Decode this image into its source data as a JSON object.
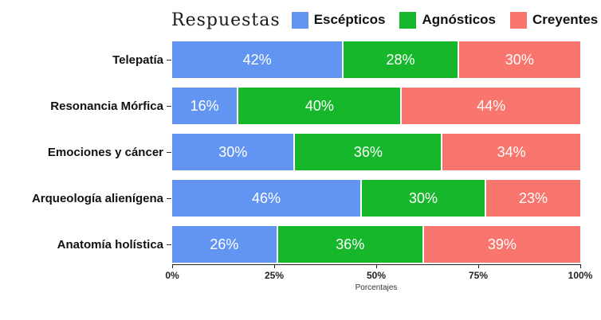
{
  "legend": {
    "title": "Respuestas",
    "items": [
      {
        "label": "Escépticos",
        "color": "#6295F2"
      },
      {
        "label": "Agnósticos",
        "color": "#17B72B"
      },
      {
        "label": "Creyentes",
        "color": "#F8766D"
      }
    ]
  },
  "chart_data": {
    "type": "bar",
    "orientation": "horizontal",
    "stacked": true,
    "title": "Respuestas",
    "xlabel": "Porcentajes",
    "ylabel": "",
    "xlim": [
      0,
      100
    ],
    "x_ticks": [
      "0%",
      "25%",
      "50%",
      "75%",
      "100%"
    ],
    "x_tick_values": [
      0,
      25,
      50,
      75,
      100
    ],
    "legend_position": "top",
    "value_suffix": "%",
    "categories": [
      "Telepatía",
      "Resonancia Mórfica",
      "Emociones y cáncer",
      "Arqueología alienígena",
      "Anatomía holística"
    ],
    "series": [
      {
        "name": "Escépticos",
        "color": "#6295F2",
        "values": [
          42,
          16,
          30,
          46,
          26
        ]
      },
      {
        "name": "Agnósticos",
        "color": "#17B72B",
        "values": [
          28,
          40,
          36,
          30,
          36
        ]
      },
      {
        "name": "Creyentes",
        "color": "#F8766D",
        "values": [
          30,
          44,
          34,
          23,
          39
        ]
      }
    ]
  }
}
